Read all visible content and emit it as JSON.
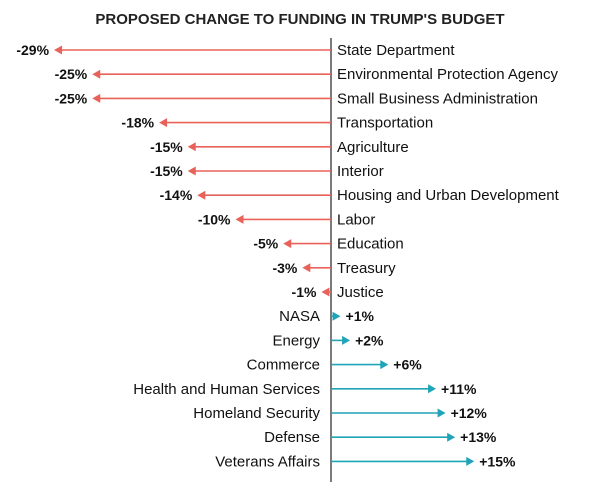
{
  "chart_data": {
    "type": "bar",
    "title": "PROPOSED CHANGE TO FUNDING IN TRUMP'S BUDGET",
    "xlabel": "",
    "ylabel": "",
    "unit": "%",
    "categories": [
      "State Department",
      "Environmental Protection Agency",
      "Small Business Administration",
      "Transportation",
      "Agriculture",
      "Interior",
      "Housing and Urban Development",
      "Labor",
      "Education",
      "Treasury",
      "Justice",
      "NASA",
      "Energy",
      "Commerce",
      "Health and Human Services",
      "Homeland Security",
      "Defense",
      "Veterans Affairs"
    ],
    "values": [
      -29,
      -25,
      -25,
      -18,
      -15,
      -15,
      -14,
      -10,
      -5,
      -3,
      -1,
      1,
      2,
      6,
      11,
      12,
      13,
      15
    ],
    "labels": [
      "-29%",
      "-25%",
      "-25%",
      "-18%",
      "-15%",
      "-15%",
      "-14%",
      "-10%",
      "-5%",
      "-3%",
      "-1%",
      "+1%",
      "+2%",
      "+6%",
      "+11%",
      "+12%",
      "+13%",
      "+15%"
    ],
    "colors": {
      "negative": "#e8625a",
      "positive": "#1fa4b8",
      "axis": "#333333"
    }
  }
}
